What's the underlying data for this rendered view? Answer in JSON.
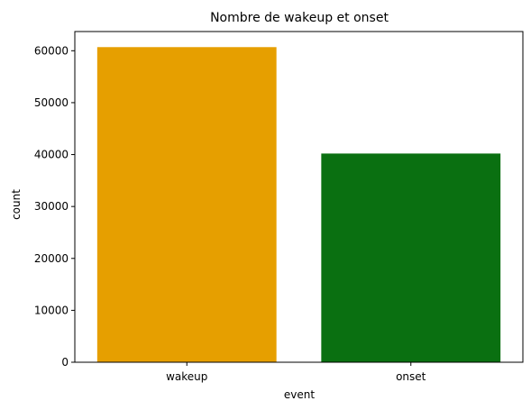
{
  "chart_data": {
    "type": "bar",
    "title": "Nombre de wakeup et onset",
    "xlabel": "event",
    "ylabel": "count",
    "categories": [
      "wakeup",
      "onset"
    ],
    "values": [
      60700,
      40200
    ],
    "colors": [
      "#e69f00",
      "#0a7011"
    ],
    "ylim": [
      0,
      63700
    ],
    "yticks": [
      0,
      10000,
      20000,
      30000,
      40000,
      50000,
      60000
    ],
    "grid": false,
    "legend": "none"
  }
}
